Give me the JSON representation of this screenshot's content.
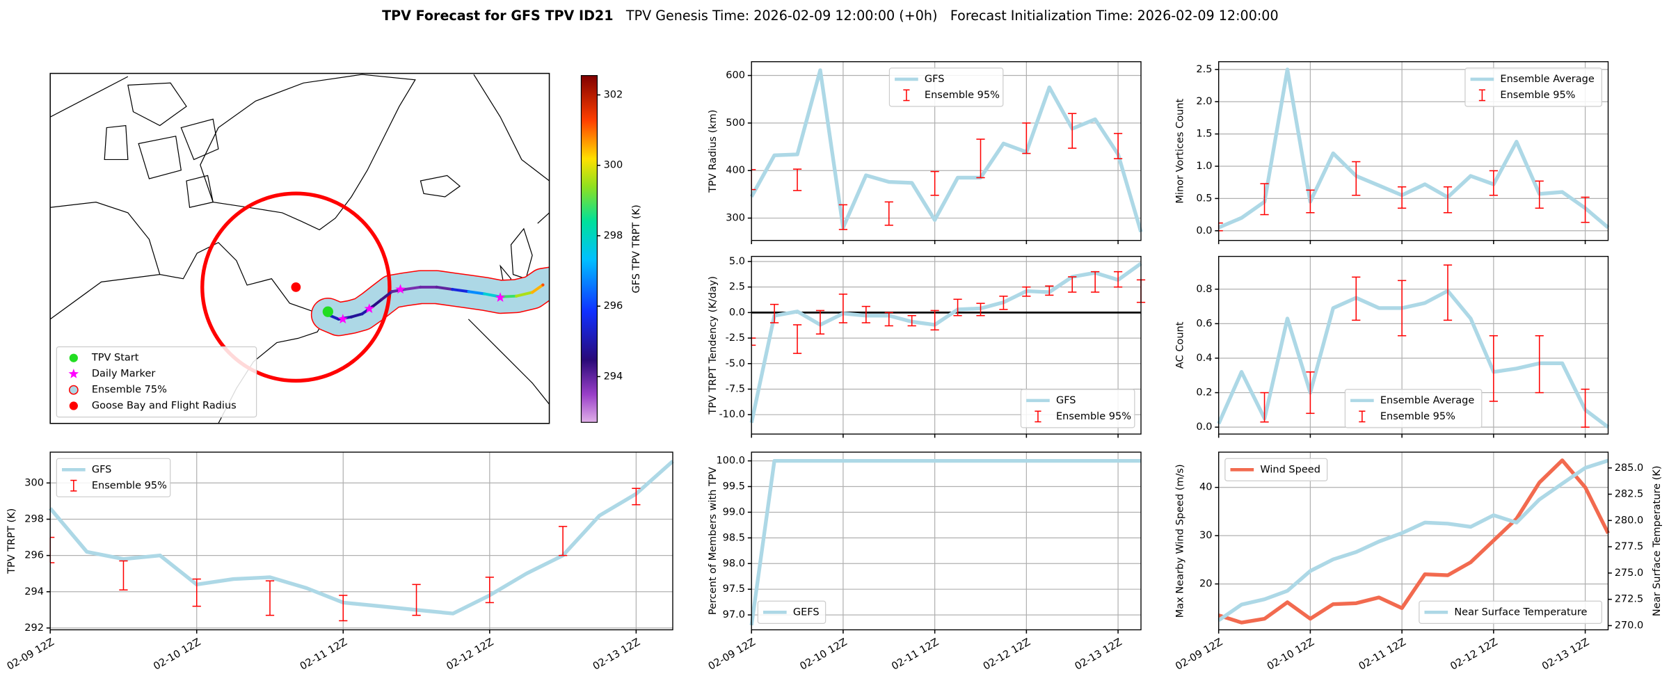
{
  "title": "TPV Forecast for GFS TPV ID21",
  "subtitles": [
    "TPV Genesis Time: 2026-02-09 12:00:00 (+0h)",
    "Forecast Initialization Time: 2026-02-09 12:00:00"
  ],
  "chart_data": [
    {
      "type": "map",
      "lonlim": [
        -118,
        -1
      ],
      "latlim": [
        35,
        82
      ],
      "track": {
        "lon": [
          -52.9,
          -50.4,
          -47.4,
          -44.9,
          -42.4,
          -40.4,
          -37.9,
          -34.9,
          -31.2,
          -27.4,
          -23.7,
          -19.9,
          -16.2,
          -12.5,
          -8.7,
          -5.0,
          -2.5
        ],
        "lat": [
          49.6,
          49.0,
          49.3,
          49.7,
          50.7,
          51.6,
          52.7,
          53.0,
          53.3,
          53.3,
          53.0,
          52.7,
          52.4,
          52.0,
          52.1,
          52.6,
          53.6
        ],
        "trpt": [
          295.2,
          295.0,
          294.8,
          295.0,
          294.6,
          294.3,
          294.0,
          293.8,
          293.9,
          294.0,
          295.5,
          296.8,
          297.8,
          298.8,
          299.6,
          300.5,
          301.2
        ]
      },
      "start": {
        "name": "TPV Start",
        "color": "#22dd22",
        "lon": -52.9,
        "lat": 50.0
      },
      "daily_markers": {
        "name": "Daily Marker",
        "color": "magenta",
        "lon": [
          -49.4,
          -43.2,
          -35.9,
          -12.5
        ],
        "lat": [
          49.0,
          50.4,
          53.0,
          51.9
        ]
      },
      "ensemble": {
        "name": "Ensemble 75%",
        "color": "lightblue",
        "edgecolor": "red"
      },
      "goose_bay": {
        "name": "Goose Bay and Flight Radius",
        "color": "red",
        "lon": -60.4,
        "lat": 53.3
      },
      "colorbar": {
        "label": "GFS TPV TRPT (K)",
        "clim": [
          292.7,
          302.55
        ],
        "ticks": [
          294,
          296,
          298,
          300,
          302
        ]
      }
    },
    {
      "type": "line",
      "ylabel": "TPV TRPT (K)",
      "grid": true,
      "legend": "upper left",
      "categories": [
        "02-09 12Z",
        null,
        null,
        null,
        "02-10 12Z",
        null,
        null,
        null,
        "02-11 12Z",
        null,
        null,
        null,
        "02-12 12Z",
        null,
        null,
        null,
        "02-13 12Z",
        null
      ],
      "ylim": [
        291.9,
        301.7
      ],
      "yticks": [
        292,
        294,
        296,
        298,
        300
      ],
      "series": [
        {
          "name": "GFS",
          "color": "#add8e6",
          "values": [
            298.6,
            296.2,
            295.8,
            296.0,
            294.4,
            294.7,
            294.8,
            294.2,
            293.4,
            293.2,
            293.0,
            292.8,
            293.8,
            295.0,
            296.0,
            298.2,
            299.4,
            301.2
          ]
        }
      ],
      "ensemble": {
        "name": "Ensemble 95%",
        "color": "red",
        "low": [
          295.6,
          null,
          294.1,
          null,
          293.2,
          null,
          292.7,
          null,
          292.4,
          null,
          292.7,
          null,
          293.4,
          null,
          296.0,
          null,
          298.8,
          null
        ],
        "high": [
          297.0,
          null,
          295.7,
          null,
          294.7,
          null,
          294.6,
          null,
          293.8,
          null,
          294.4,
          null,
          294.8,
          null,
          297.6,
          null,
          299.7,
          null
        ]
      }
    },
    {
      "type": "line",
      "ylabel": "TPV Radius (km)",
      "grid": true,
      "legend": "upper center",
      "ylim": [
        253,
        629
      ],
      "yticks": [
        300,
        400,
        500,
        600
      ],
      "series": [
        {
          "name": "GFS",
          "color": "#add8e6",
          "values": [
            345,
            432,
            434,
            611,
            280,
            390,
            376,
            374,
            296,
            385,
            385,
            457,
            439,
            575,
            488,
            508,
            434,
            271
          ]
        }
      ],
      "ensemble": {
        "name": "Ensemble 95%",
        "color": "red",
        "low": [
          360,
          null,
          358,
          null,
          276,
          null,
          285,
          null,
          348,
          null,
          385,
          null,
          436,
          null,
          447,
          null,
          425,
          null
        ],
        "high": [
          402,
          null,
          403,
          null,
          328,
          null,
          334,
          null,
          398,
          null,
          466,
          null,
          500,
          null,
          520,
          null,
          478,
          null
        ]
      }
    },
    {
      "type": "line",
      "ylabel": "TPV TRPT Tendency (K/day)",
      "grid": true,
      "legend": "lower right",
      "hline": 0,
      "ylim": [
        -11.9,
        5.5
      ],
      "yticks": [
        {
          "value": -10,
          "label": "-10.0"
        },
        -7.5,
        {
          "value": -5,
          "label": "-5.0"
        },
        -2.5,
        {
          "value": 0,
          "label": "0.0"
        },
        2.5,
        {
          "value": 5,
          "label": "5.0"
        }
      ],
      "series": [
        {
          "name": "GFS",
          "color": "#add8e6",
          "values": [
            -10.8,
            -0.3,
            0.1,
            -1.2,
            -0.1,
            -0.3,
            -0.3,
            -0.9,
            -1.2,
            0.3,
            0.4,
            1.0,
            2.1,
            2.0,
            3.5,
            3.9,
            3.2,
            4.8
          ]
        }
      ],
      "ensemble": {
        "name": "Ensemble 95%",
        "color": "red",
        "low": [
          -3.2,
          -1.0,
          -4.0,
          -2.1,
          -1.0,
          -1.0,
          -1.3,
          -1.3,
          -1.7,
          -0.3,
          -0.3,
          0.3,
          1.6,
          1.7,
          2.0,
          2.0,
          2.5,
          1.0
        ],
        "high": [
          -2.5,
          0.8,
          -1.2,
          0.2,
          1.8,
          0.6,
          0.0,
          -0.3,
          0.2,
          1.3,
          0.9,
          1.6,
          2.5,
          2.6,
          3.5,
          4.0,
          4.0,
          3.2
        ]
      }
    },
    {
      "type": "line",
      "ylabel": "Percent of Members with TPV",
      "grid": true,
      "legend": "lower left",
      "categories": [
        "02-09 12Z",
        null,
        null,
        null,
        "02-10 12Z",
        null,
        null,
        null,
        "02-11 12Z",
        null,
        null,
        null,
        "02-12 12Z",
        null,
        null,
        null,
        "02-13 12Z",
        null
      ],
      "ylim": [
        96.71,
        100.17
      ],
      "yticks": [
        {
          "value": 97,
          "label": "97.0"
        },
        97.5,
        {
          "value": 98,
          "label": "98.0"
        },
        98.5,
        {
          "value": 99,
          "label": "99.0"
        },
        99.5,
        {
          "value": 100,
          "label": "100.0"
        }
      ],
      "series": [
        {
          "name": "GEFS",
          "color": "#add8e6",
          "values": [
            96.8,
            100,
            100,
            100,
            100,
            100,
            100,
            100,
            100,
            100,
            100,
            100,
            100,
            100,
            100,
            100,
            100,
            100
          ]
        }
      ]
    },
    {
      "type": "line",
      "ylabel": "Minor Vortices Count",
      "grid": true,
      "legend": "upper right",
      "ylim": [
        -0.15,
        2.62
      ],
      "yticks": [
        {
          "value": 0,
          "label": "0.0"
        },
        0.5,
        {
          "value": 1,
          "label": "1.0"
        },
        1.5,
        {
          "value": 2,
          "label": "2.0"
        },
        2.5
      ],
      "series": [
        {
          "name": "Ensemble Average",
          "color": "#add8e6",
          "values": [
            0.05,
            0.2,
            0.45,
            2.5,
            0.45,
            1.2,
            0.85,
            0.7,
            0.55,
            0.72,
            0.52,
            0.85,
            0.72,
            1.38,
            0.57,
            0.6,
            0.35,
            0.05
          ]
        }
      ],
      "ensemble": {
        "name": "Ensemble 95%",
        "color": "red",
        "low": [
          0.0,
          null,
          0.25,
          null,
          0.28,
          null,
          0.55,
          null,
          0.35,
          null,
          0.28,
          null,
          0.55,
          null,
          0.35,
          null,
          0.13,
          null
        ],
        "high": [
          0.12,
          null,
          0.73,
          null,
          0.63,
          null,
          1.07,
          null,
          0.68,
          null,
          0.68,
          null,
          0.93,
          null,
          0.77,
          null,
          0.52,
          null
        ]
      }
    },
    {
      "type": "line",
      "ylabel": "AC Count",
      "grid": true,
      "legend": "lower center",
      "ylim": [
        -0.04,
        0.99
      ],
      "yticks": [
        {
          "value": 0,
          "label": "0.0"
        },
        0.2,
        0.4,
        0.6,
        0.8
      ],
      "series": [
        {
          "name": "Ensemble Average",
          "color": "#add8e6",
          "values": [
            0.02,
            0.32,
            0.05,
            0.63,
            0.2,
            0.69,
            0.75,
            0.69,
            0.69,
            0.72,
            0.79,
            0.63,
            0.32,
            0.34,
            0.37,
            0.37,
            0.1,
            0.0
          ]
        }
      ],
      "ensemble": {
        "name": "Ensemble 95%",
        "color": "red",
        "low": [
          null,
          null,
          0.03,
          null,
          0.08,
          null,
          0.62,
          null,
          0.53,
          null,
          0.62,
          null,
          0.15,
          null,
          0.2,
          null,
          0.0,
          null
        ],
        "high": [
          null,
          null,
          0.2,
          null,
          0.32,
          null,
          0.87,
          null,
          0.85,
          null,
          0.94,
          null,
          0.53,
          null,
          0.53,
          null,
          0.22,
          null
        ]
      }
    },
    {
      "type": "line",
      "ylabel": "Max Nearby Wind Speed (m/s)",
      "ylabel_color": "#f26a4f",
      "y2label": "Near Surface Temperature (K)",
      "y2label_color": "royalblue",
      "grid": true,
      "legend": "upper left",
      "legend2": "lower right",
      "categories": [
        "02-09 12Z",
        null,
        null,
        null,
        "02-10 12Z",
        null,
        null,
        null,
        "02-11 12Z",
        null,
        null,
        null,
        "02-12 12Z",
        null,
        null,
        null,
        "02-13 12Z",
        null
      ],
      "ylim": [
        10.5,
        47.3
      ],
      "yticks": [
        20,
        30,
        40
      ],
      "y2lim": [
        269.6,
        286.5
      ],
      "y2ticks": [
        {
          "value": 270,
          "label": "270.0"
        },
        272.5,
        {
          "value": 275,
          "label": "275.0"
        },
        277.5,
        {
          "value": 280,
          "label": "280.0"
        },
        282.5,
        {
          "value": 285,
          "label": "285.0"
        }
      ],
      "series": [
        {
          "name": "Wind Speed",
          "color": "#f26a4f",
          "values": [
            13.5,
            12.0,
            12.8,
            16.2,
            12.8,
            15.8,
            16.0,
            17.2,
            15.0,
            22.0,
            21.8,
            24.5,
            29.0,
            33.5,
            41.0,
            45.6,
            40.0,
            30.5
          ]
        },
        {
          "name": "Near Surface Temperature",
          "color": "#add8e6",
          "axis": "y2",
          "values": [
            270.5,
            272.0,
            272.5,
            273.3,
            275.2,
            276.3,
            277.0,
            278.0,
            278.8,
            279.8,
            279.7,
            279.4,
            280.5,
            279.8,
            282.0,
            283.5,
            285.0,
            285.7
          ]
        }
      ]
    }
  ]
}
